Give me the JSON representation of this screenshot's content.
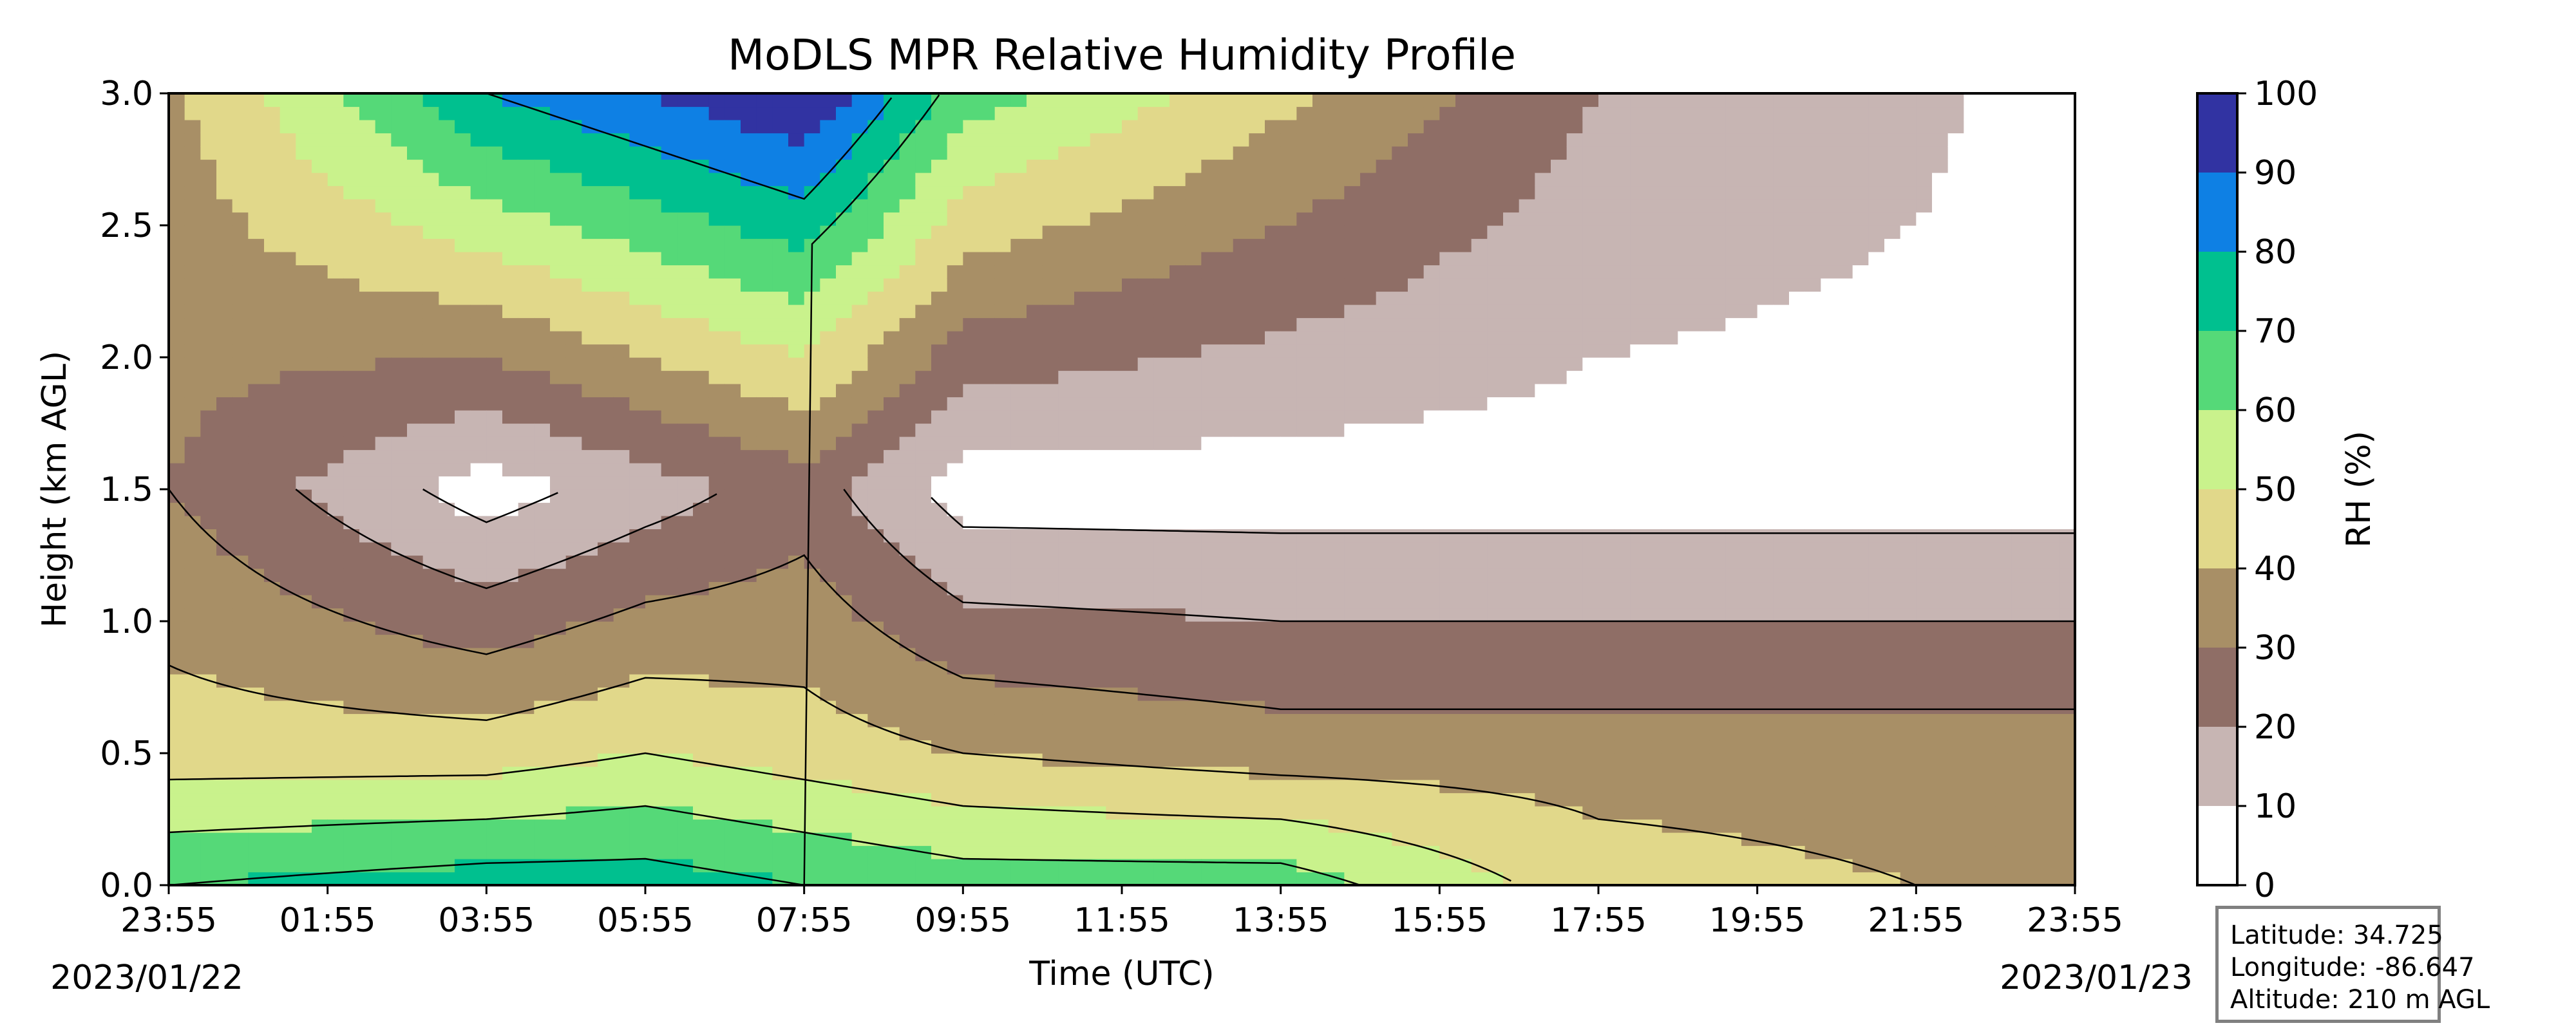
{
  "chart_data": {
    "type": "heatmap",
    "title": "MoDLS MPR Relative Humidity Profile",
    "xlabel": "Time (UTC)",
    "ylabel": "Height (km AGL)",
    "x_ticks": [
      "23:55",
      "01:55",
      "03:55",
      "05:55",
      "07:55",
      "09:55",
      "11:55",
      "13:55",
      "15:55",
      "17:55",
      "19:55",
      "21:55",
      "23:55"
    ],
    "x_start_date": "2023/01/22",
    "x_end_date": "2023/01/23",
    "ylim": [
      0.0,
      3.0
    ],
    "y_ticks": [
      "0.0",
      "0.5",
      "1.0",
      "1.5",
      "2.0",
      "2.5",
      "3.0"
    ],
    "colorbar": {
      "label": "RH (%)",
      "ticks": [
        "0",
        "10",
        "20",
        "30",
        "40",
        "50",
        "60",
        "70",
        "80",
        "90",
        "100"
      ],
      "bins": [
        {
          "range": [
            0,
            10
          ],
          "color": "#ffffff"
        },
        {
          "range": [
            10,
            20
          ],
          "color": "#c7b5b3"
        },
        {
          "range": [
            20,
            30
          ],
          "color": "#8f6e66"
        },
        {
          "range": [
            30,
            40
          ],
          "color": "#a88f66"
        },
        {
          "range": [
            40,
            50
          ],
          "color": "#e1d88a"
        },
        {
          "range": [
            50,
            60
          ],
          "color": "#c9f28c"
        },
        {
          "range": [
            60,
            70
          ],
          "color": "#55d978"
        },
        {
          "range": [
            70,
            80
          ],
          "color": "#00c08f"
        },
        {
          "range": [
            80,
            90
          ],
          "color": "#0e80e4"
        },
        {
          "range": [
            90,
            100
          ],
          "color": "#3133a2"
        }
      ]
    },
    "approx_rh_by_time": [
      {
        "time": "23:55",
        "rh_0.0km": 70,
        "rh_0.5km": 45,
        "rh_1.5km": 30,
        "rh_2.5km": 35
      },
      {
        "time": "03:55",
        "rh_0.0km": 75,
        "rh_0.5km": 45,
        "rh_1.5km": 5,
        "rh_2.5km": 55
      },
      {
        "time": "05:55",
        "rh_0.0km": 75,
        "rh_0.5km": 50,
        "rh_1.5km": 15,
        "rh_2.5km": 65
      },
      {
        "time": "07:55",
        "rh_0.0km": 70,
        "rh_0.5km": 45,
        "rh_1.5km": 25,
        "rh_2.5km": 75
      },
      {
        "time": "09:55",
        "rh_0.0km": 65,
        "rh_0.5km": 40,
        "rh_1.5km": 5,
        "rh_2.5km": 45
      },
      {
        "time": "13:55",
        "rh_0.0km": 65,
        "rh_0.5km": 35,
        "rh_1.5km": 5,
        "rh_2.5km": 30
      },
      {
        "time": "17:55",
        "rh_0.0km": 45,
        "rh_0.5km": 35,
        "rh_1.5km": 5,
        "rh_2.5km": 15
      },
      {
        "time": "21:55",
        "rh_0.0km": 40,
        "rh_0.5km": 35,
        "rh_1.5km": 5,
        "rh_2.5km": 10
      },
      {
        "time": "23:55",
        "rh_0.0km": 40,
        "rh_0.5km": 35,
        "rh_1.5km": 5,
        "rh_2.5km": 5
      }
    ]
  },
  "info": {
    "latitude": "Latitude: 34.725",
    "longitude": "Longitude: -86.647",
    "altitude": "Altitude: 210 m AGL"
  }
}
